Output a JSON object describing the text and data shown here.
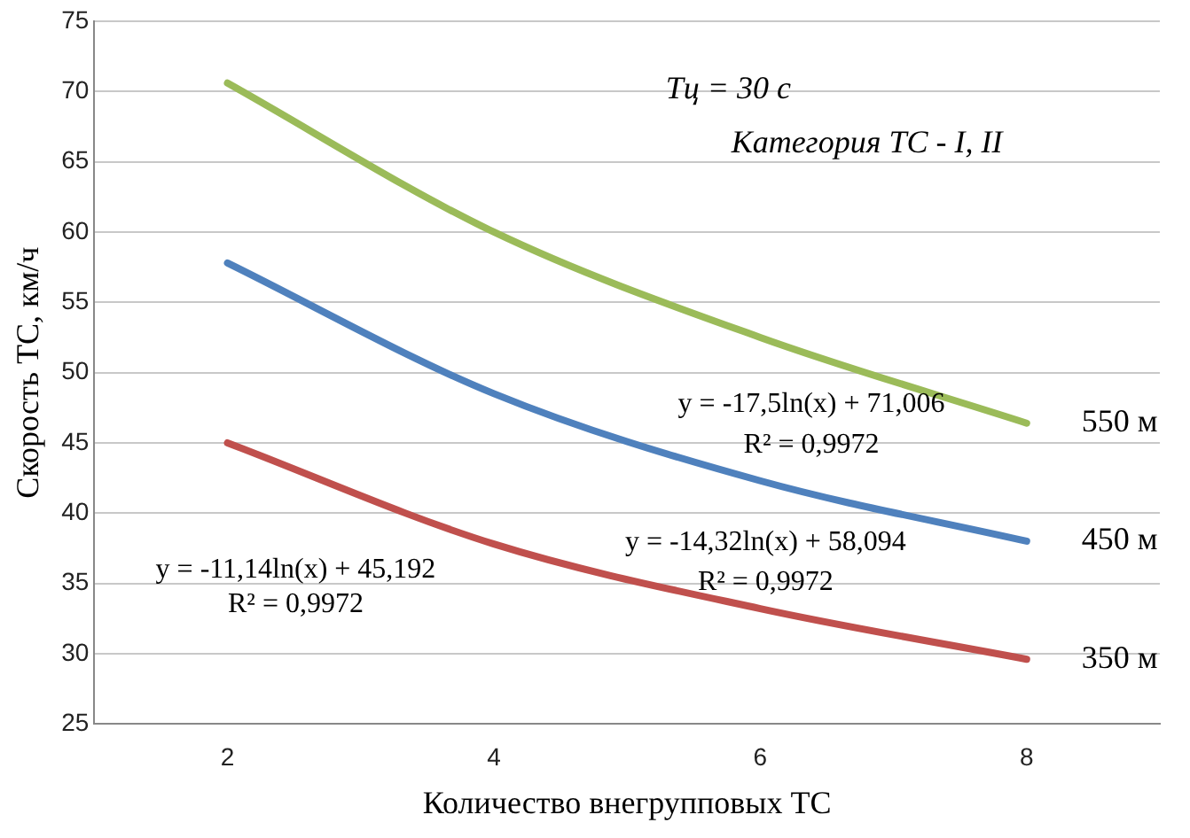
{
  "chart_data": {
    "type": "line",
    "xlabel": "Количество внегрупповых ТС",
    "ylabel": "Скорость ТС, км/ч",
    "x": [
      2,
      4,
      6,
      8
    ],
    "series": [
      {
        "name": "550 м",
        "color": "#9bbb59",
        "values": [
          70.6,
          60.0,
          52.5,
          46.4
        ]
      },
      {
        "name": "450 м",
        "color": "#4f81bd",
        "values": [
          57.8,
          48.5,
          42.3,
          38.0
        ]
      },
      {
        "name": "350 м",
        "color": "#c0504d",
        "values": [
          45.0,
          37.8,
          33.2,
          29.6
        ]
      }
    ],
    "xlim": [
      1,
      9
    ],
    "xticks": [
      2,
      4,
      6,
      8
    ],
    "ylim": [
      25,
      75
    ],
    "yticks": [
      25,
      30,
      35,
      40,
      45,
      50,
      55,
      60,
      65,
      70,
      75
    ],
    "grid": "y",
    "legend": false,
    "marker": "none",
    "line_style": "solid",
    "annotations": [
      "Тц = 30 с",
      "Категория ТС - I, II",
      "y = -17,5ln(x) + 71,006",
      "R² = 0,9972",
      "y = -14,32ln(x) + 58,094",
      "R² = 0,9972",
      "y = -11,14ln(x) + 45,192",
      "R² = 0,9972"
    ]
  }
}
